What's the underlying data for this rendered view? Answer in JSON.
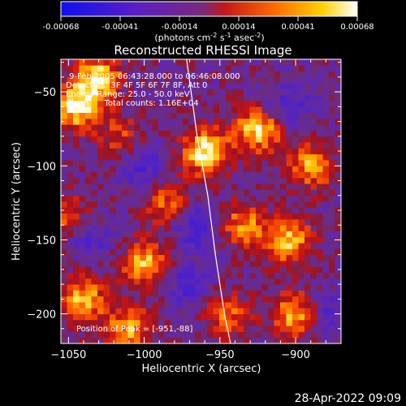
{
  "colorbar": {
    "tick_labels": [
      "-0.00068",
      "-0.00041",
      "-0.00014",
      "0.00014",
      "0.00041",
      "0.00068"
    ],
    "unit_parts": [
      "(photons cm",
      "-2",
      " s",
      "-1",
      " asec",
      "-2",
      ")"
    ],
    "colors": [
      "#1010f0",
      "#5a1ec8",
      "#7a2a7a",
      "#c0181a",
      "#ff6a00",
      "#ffd000",
      "#ffffff"
    ]
  },
  "chart_data": {
    "type": "heatmap",
    "title": "Reconstructed RHESSI Image",
    "xlabel": "Heliocentric X (arcsec)",
    "ylabel": "Heliocentric Y (arcsec)",
    "xlim": [
      -1055,
      -870
    ],
    "ylim": [
      -220,
      -28
    ],
    "x_ticks": [
      -1050,
      -1000,
      -950,
      -900
    ],
    "y_ticks": [
      -50,
      -100,
      -150,
      -200
    ],
    "x_tick_labels": [
      "−1050",
      "−1000",
      "−950",
      "−900"
    ],
    "y_tick_labels": [
      "−50",
      "−100",
      "−150",
      "−200"
    ],
    "color_range": [
      -0.00068,
      0.00068
    ],
    "hot_spots": [
      {
        "x": -960,
        "y": -90,
        "value": 0.00068
      },
      {
        "x": -1045,
        "y": -60,
        "value": 0.00066
      },
      {
        "x": -1030,
        "y": -40,
        "value": 0.0006
      },
      {
        "x": -925,
        "y": -75,
        "value": 0.00062
      },
      {
        "x": -890,
        "y": -100,
        "value": 0.0005
      },
      {
        "x": -905,
        "y": -150,
        "value": 0.00058
      },
      {
        "x": -935,
        "y": -140,
        "value": 0.00045
      },
      {
        "x": -1000,
        "y": -165,
        "value": 0.00055
      },
      {
        "x": -1040,
        "y": -190,
        "value": 0.00055
      },
      {
        "x": -1010,
        "y": -210,
        "value": 0.0005
      },
      {
        "x": -985,
        "y": -125,
        "value": 0.00038
      },
      {
        "x": -945,
        "y": -200,
        "value": 0.0004
      },
      {
        "x": -900,
        "y": -200,
        "value": 0.00055
      },
      {
        "x": -1050,
        "y": -135,
        "value": 0.00035
      },
      {
        "x": -1015,
        "y": -80,
        "value": 0.0003
      }
    ],
    "cold_spots": [
      {
        "x": -965,
        "y": -140,
        "value": -0.00035
      },
      {
        "x": -1000,
        "y": -100,
        "value": -0.0003
      },
      {
        "x": -880,
        "y": -200,
        "value": -0.00028
      },
      {
        "x": -1035,
        "y": -150,
        "value": -0.00025
      },
      {
        "x": -905,
        "y": -60,
        "value": -0.00025
      },
      {
        "x": -970,
        "y": -180,
        "value": -0.0003
      }
    ],
    "limb_line": [
      [
        -972,
        -28
      ],
      [
        -965,
        -80
      ],
      [
        -958,
        -120
      ],
      [
        -953,
        -160
      ],
      [
        -947,
        -200
      ],
      [
        -943,
        -220
      ]
    ],
    "annotations": [
      "9-Feb-2005 06:43:28.000 to 06:46:08.000",
      "Detectors: 3F 4F 5F 6F 7F 8F, Att 0",
      "Energy Range: 25.0 - 50.0 keV",
      "Clean      Total counts: 1.16E+04",
      "Position of Peak = [-951,-88]"
    ]
  },
  "footer_date": "28-Apr-2022 09:09"
}
